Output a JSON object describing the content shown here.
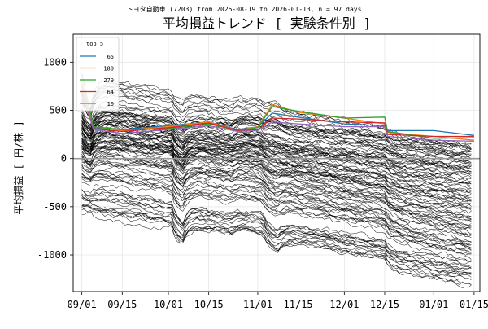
{
  "chart_data": {
    "type": "line",
    "suptitle": "トヨタ自動車 (7203) from 2025-08-19 to 2026-01-13, n = 97 days",
    "title": "平均損益トレンド [ 実験条件別 ]",
    "xlabel": "",
    "ylabel": "平均損益 [ 円/株 ]",
    "xlim": [
      "2025-08-29",
      "2026-01-17"
    ],
    "ylim": [
      -1380,
      1290
    ],
    "yticks": [
      -1000,
      -500,
      0,
      500,
      1000
    ],
    "xticks": [
      "2025-09-01",
      "2025-09-15",
      "2025-10-01",
      "2025-10-15",
      "2025-11-01",
      "2025-11-15",
      "2025-12-01",
      "2025-12-15",
      "2026-01-01",
      "2026-01-15"
    ],
    "xtick_labels": [
      "09/01",
      "09/15",
      "10/01",
      "10/15",
      "11/01",
      "11/15",
      "12/01",
      "12/15",
      "01/01",
      "01/15"
    ],
    "grid": true,
    "zero_line": true,
    "legend": {
      "title": "top 5",
      "placement": "top-left"
    },
    "highlight_series": [
      {
        "name": "65",
        "color": "#1f77b4",
        "points": [
          [
            "2025-09-01",
            760
          ],
          [
            "2025-09-05",
            320
          ],
          [
            "2025-09-15",
            300
          ],
          [
            "2025-10-01",
            340
          ],
          [
            "2025-10-15",
            380
          ],
          [
            "2025-10-25",
            300
          ],
          [
            "2025-11-01",
            330
          ],
          [
            "2025-11-06",
            470
          ],
          [
            "2025-11-15",
            430
          ],
          [
            "2025-12-01",
            360
          ],
          [
            "2025-12-15",
            340
          ],
          [
            "2025-12-16",
            290
          ],
          [
            "2026-01-01",
            290
          ],
          [
            "2026-01-15",
            240
          ]
        ]
      },
      {
        "name": "180",
        "color": "#ff7f0e",
        "points": [
          [
            "2025-09-01",
            790
          ],
          [
            "2025-09-05",
            330
          ],
          [
            "2025-09-15",
            290
          ],
          [
            "2025-10-01",
            330
          ],
          [
            "2025-10-15",
            380
          ],
          [
            "2025-10-25",
            290
          ],
          [
            "2025-11-01",
            330
          ],
          [
            "2025-11-06",
            560
          ],
          [
            "2025-11-15",
            480
          ],
          [
            "2025-12-01",
            420
          ],
          [
            "2025-12-15",
            360
          ],
          [
            "2025-12-16",
            270
          ],
          [
            "2026-01-01",
            230
          ],
          [
            "2026-01-15",
            190
          ]
        ]
      },
      {
        "name": "279",
        "color": "#2ca02c",
        "points": [
          [
            "2025-09-01",
            880
          ],
          [
            "2025-09-05",
            330
          ],
          [
            "2025-09-15",
            300
          ],
          [
            "2025-10-01",
            310
          ],
          [
            "2025-10-15",
            360
          ],
          [
            "2025-10-25",
            290
          ],
          [
            "2025-11-01",
            320
          ],
          [
            "2025-11-06",
            540
          ],
          [
            "2025-11-15",
            490
          ],
          [
            "2025-12-01",
            420
          ],
          [
            "2025-12-15",
            430
          ],
          [
            "2025-12-16",
            280
          ],
          [
            "2026-01-01",
            210
          ],
          [
            "2026-01-15",
            215
          ]
        ]
      },
      {
        "name": "64",
        "color": "#d62728",
        "points": [
          [
            "2025-09-01",
            680
          ],
          [
            "2025-09-05",
            310
          ],
          [
            "2025-09-15",
            280
          ],
          [
            "2025-10-01",
            320
          ],
          [
            "2025-10-15",
            370
          ],
          [
            "2025-10-25",
            290
          ],
          [
            "2025-11-01",
            300
          ],
          [
            "2025-11-06",
            420
          ],
          [
            "2025-11-15",
            410
          ],
          [
            "2025-12-01",
            380
          ],
          [
            "2025-12-15",
            370
          ],
          [
            "2025-12-16",
            250
          ],
          [
            "2026-01-01",
            230
          ],
          [
            "2026-01-15",
            230
          ]
        ]
      },
      {
        "name": "10",
        "color": "#9467bd",
        "points": [
          [
            "2025-09-01",
            720
          ],
          [
            "2025-09-05",
            300
          ],
          [
            "2025-09-15",
            260
          ],
          [
            "2025-10-01",
            300
          ],
          [
            "2025-10-15",
            340
          ],
          [
            "2025-10-25",
            280
          ],
          [
            "2025-11-01",
            290
          ],
          [
            "2025-11-06",
            380
          ],
          [
            "2025-11-15",
            360
          ],
          [
            "2025-12-01",
            330
          ],
          [
            "2025-12-15",
            330
          ],
          [
            "2025-12-16",
            230
          ],
          [
            "2026-01-01",
            190
          ],
          [
            "2026-01-15",
            180
          ]
        ]
      }
    ],
    "background_series": {
      "color": "#000000",
      "count": 110,
      "start_date": "2025-09-01",
      "end_date": "2026-01-14",
      "final_value_range": [
        -1230,
        200
      ],
      "step_dates": [
        "2025-09-03",
        "2025-10-03",
        "2025-10-24",
        "2025-11-04",
        "2025-12-16"
      ]
    }
  }
}
